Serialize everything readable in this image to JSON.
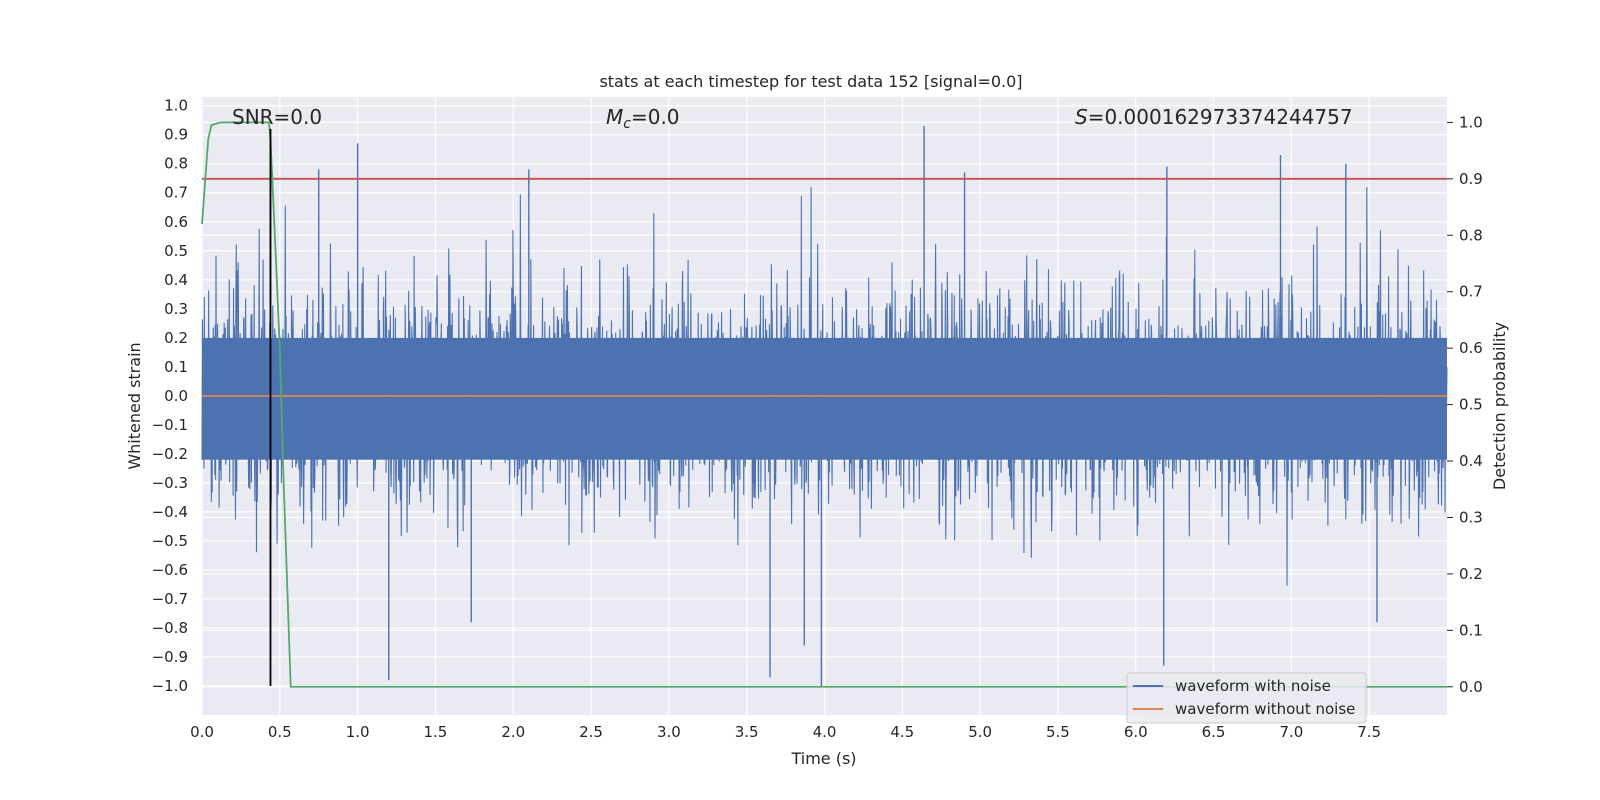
{
  "chart_data": {
    "type": "line",
    "title": "stats at each timestep for test data 152 [signal=0.0]",
    "xlabel": "Time (s)",
    "ylabel_left": "Whitened strain",
    "ylabel_right": "Detection probability",
    "xlim": [
      0.0,
      8.0
    ],
    "ylim_left": [
      -1.1,
      1.03
    ],
    "ylim_right": [
      -0.05,
      1.045
    ],
    "x_ticks": [
      "0.0",
      "0.5",
      "1.0",
      "1.5",
      "2.0",
      "2.5",
      "3.0",
      "3.5",
      "4.0",
      "4.5",
      "5.0",
      "5.5",
      "6.0",
      "6.5",
      "7.0",
      "7.5"
    ],
    "y_left_ticks": [
      "1.0",
      "0.9",
      "0.8",
      "0.7",
      "0.6",
      "0.5",
      "0.4",
      "0.3",
      "0.2",
      "0.1",
      "0.0",
      "−0.1",
      "−0.2",
      "−0.3",
      "−0.4",
      "−0.5",
      "−0.6",
      "−0.7",
      "−0.8",
      "−0.9",
      "−1.0"
    ],
    "y_right_ticks": [
      "1.0",
      "0.9",
      "0.8",
      "0.7",
      "0.6",
      "0.5",
      "0.4",
      "0.3",
      "0.2",
      "0.1",
      "0.0"
    ],
    "annotations": {
      "snr": "SNR=0.0",
      "mc_sym": "M",
      "mc_sub": "c",
      "mc_val": "=0.0",
      "s_sym": "S",
      "s_val": "=0.000162973374244757"
    },
    "threshold": {
      "axis": "right",
      "value": 0.9,
      "color": "#c44e52"
    },
    "marker_line": {
      "x": 0.44,
      "y_range_left": [
        -1.0,
        0.92
      ],
      "color": "#000000"
    },
    "series": [
      {
        "name": "waveform with noise",
        "axis": "left",
        "color": "#4c72b0",
        "note": "dense whitened noise, approx. uniform band |y| <= 0.4 with sparse spikes",
        "spikes": [
          {
            "x": 0.44,
            "y": 0.88
          },
          {
            "x": 1.0,
            "y": 0.87
          },
          {
            "x": 4.64,
            "y": 0.93
          },
          {
            "x": 0.75,
            "y": 0.78
          },
          {
            "x": 2.1,
            "y": 0.78
          },
          {
            "x": 4.9,
            "y": 0.77
          },
          {
            "x": 6.2,
            "y": 0.79
          },
          {
            "x": 6.93,
            "y": 0.83
          },
          {
            "x": 7.35,
            "y": 0.8
          },
          {
            "x": 1.2,
            "y": -0.98
          },
          {
            "x": 3.65,
            "y": -0.97
          },
          {
            "x": 3.98,
            "y": -1.0
          },
          {
            "x": 3.87,
            "y": -0.86
          },
          {
            "x": 6.18,
            "y": -0.93
          },
          {
            "x": 1.73,
            "y": -0.78
          },
          {
            "x": 7.55,
            "y": -0.78
          }
        ]
      },
      {
        "name": "waveform without noise",
        "axis": "left",
        "color": "#dd8452",
        "x": [
          0.0,
          8.0
        ],
        "y": [
          0.0,
          0.0
        ]
      },
      {
        "name": "detection probability",
        "axis": "right",
        "color": "#55a868",
        "x": [
          0.0,
          0.04,
          0.06,
          0.12,
          0.2,
          0.3,
          0.43,
          0.44,
          0.46,
          0.5,
          0.52,
          0.56,
          0.57,
          8.0
        ],
        "y": [
          0.82,
          0.97,
          0.995,
          1.0,
          1.0,
          1.0,
          1.0,
          0.97,
          0.85,
          0.6,
          0.4,
          0.08,
          0.0,
          0.0
        ]
      }
    ],
    "legend": {
      "placement": "bottom-right",
      "entries": [
        {
          "label": "waveform with noise",
          "color": "#4c72b0"
        },
        {
          "label": "waveform without noise",
          "color": "#dd8452"
        }
      ]
    }
  }
}
